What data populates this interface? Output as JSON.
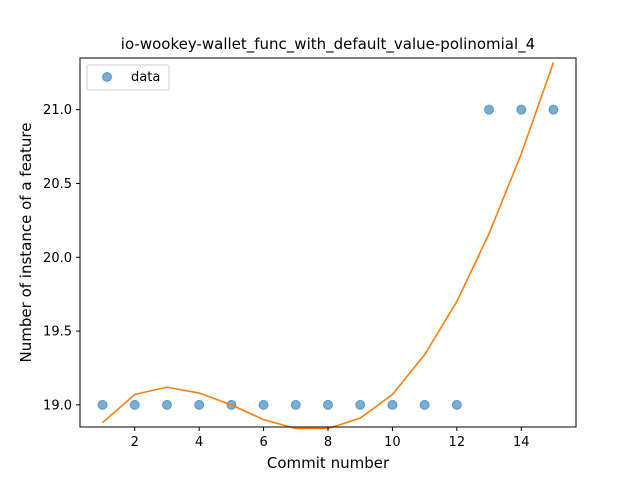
{
  "chart_data": {
    "type": "scatter",
    "title": "io-wookey-wallet_func_with_default_value-polinomial_4",
    "xlabel": "Commit number",
    "ylabel": "Number of instance of a feature",
    "xlim": [
      0.3,
      15.7
    ],
    "ylim": [
      18.85,
      21.35
    ],
    "x_ticks": [
      2,
      4,
      6,
      8,
      10,
      12,
      14
    ],
    "y_ticks": [
      19.0,
      19.5,
      20.0,
      20.5,
      21.0
    ],
    "y_tick_labels": [
      "19.0",
      "19.5",
      "20.0",
      "20.5",
      "21.0"
    ],
    "grid": false,
    "legend": {
      "placement": "top-left",
      "entries": [
        "data"
      ]
    },
    "series": [
      {
        "name": "data",
        "kind": "scatter",
        "color": "#1f77b4",
        "x": [
          1,
          2,
          3,
          4,
          5,
          6,
          7,
          8,
          9,
          10,
          11,
          12,
          13,
          14,
          15
        ],
        "y": [
          19,
          19,
          19,
          19,
          19,
          19,
          19,
          19,
          19,
          19,
          19,
          19,
          21,
          21,
          21
        ]
      },
      {
        "kind": "line",
        "color": "#ff7f0e",
        "x": [
          1,
          2,
          3,
          4,
          5,
          6,
          7,
          8,
          9,
          10,
          11,
          12,
          13,
          14,
          15
        ],
        "y": [
          18.88,
          19.07,
          19.12,
          19.08,
          19.0,
          18.9,
          18.84,
          18.84,
          18.91,
          19.07,
          19.34,
          19.7,
          20.16,
          20.7,
          21.32
        ]
      }
    ]
  }
}
